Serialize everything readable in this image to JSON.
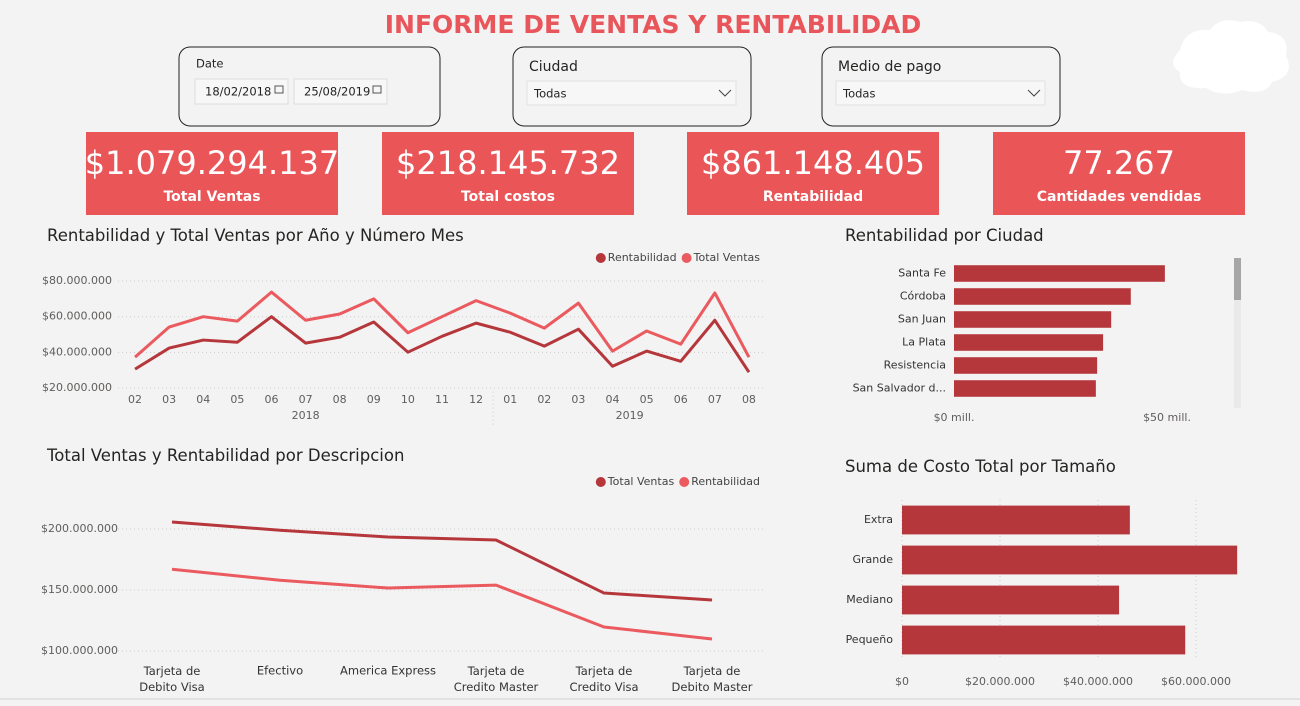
{
  "title": "INFORME DE VENTAS Y RENTABILIDAD",
  "filters": {
    "date": {
      "label": "Date",
      "start": "18/02/2018",
      "end": "25/08/2019"
    },
    "ciudad": {
      "label": "Ciudad",
      "value": "Todas"
    },
    "medio_pago": {
      "label": "Medio de pago",
      "value": "Todas"
    }
  },
  "kpis": [
    {
      "value": "$1.079.294.137",
      "label": "Total Ventas"
    },
    {
      "value": "$218.145.732",
      "label": "Total costos"
    },
    {
      "value": "$861.148.405",
      "label": "Rentabilidad"
    },
    {
      "value": "77.267",
      "label": "Cantidades vendidas"
    }
  ],
  "chart_data": [
    {
      "type": "line",
      "title": "Rentabilidad y Total Ventas por Año y Número Mes",
      "categories": [
        "02",
        "03",
        "04",
        "05",
        "06",
        "07",
        "08",
        "09",
        "10",
        "11",
        "12",
        "01",
        "02",
        "03",
        "04",
        "05",
        "06",
        "07",
        "08"
      ],
      "x_groups": [
        "2018",
        "2019"
      ],
      "series": [
        {
          "name": "Rentabilidad",
          "color": "#b5373b",
          "values": [
            30600000,
            42400000,
            46900000,
            45700000,
            60000000,
            45200000,
            48500000,
            57000000,
            40100000,
            49000000,
            56400000,
            51300000,
            43500000,
            53000000,
            32200000,
            40700000,
            35000000,
            58000000,
            28900000
          ]
        },
        {
          "name": "Total Ventas",
          "color": "#ea5a5e",
          "values": [
            37300000,
            54200000,
            60000000,
            57500000,
            73800000,
            58000000,
            61500000,
            70000000,
            51000000,
            60000000,
            69000000,
            62000000,
            53600000,
            67600000,
            40700000,
            52000000,
            44600000,
            73300000,
            37300000
          ]
        }
      ],
      "ylim": [
        18000000,
        84000000
      ],
      "yticks": [
        {
          "value": 20000000,
          "label": "$20.000.000"
        },
        {
          "value": 40000000,
          "label": "$40.000.000"
        },
        {
          "value": 60000000,
          "label": "$60.000.000"
        },
        {
          "value": 80000000,
          "label": "$80.000.000"
        }
      ],
      "grid": true,
      "legend": "top-right"
    },
    {
      "type": "line",
      "title": "Total Ventas y Rentabilidad por Descripcion",
      "categories": [
        "Tarjeta de Debito Visa",
        "Efectivo",
        "America Express",
        "Tarjeta de Credito Master",
        "Tarjeta de Credito Visa",
        "Tarjeta de Debito Master"
      ],
      "series": [
        {
          "name": "Total Ventas",
          "color": "#b5373b",
          "values": [
            205700000,
            199000000,
            193400000,
            191000000,
            147500000,
            141800000
          ]
        },
        {
          "name": "Rentabilidad",
          "color": "#ea5a5e",
          "values": [
            167000000,
            158000000,
            151600000,
            154000000,
            119700000,
            109800000
          ]
        }
      ],
      "ylim": [
        95000000,
        225000000
      ],
      "yticks": [
        {
          "value": 100000000,
          "label": "$100.000.000"
        },
        {
          "value": 150000000,
          "label": "$150.000.000"
        },
        {
          "value": 200000000,
          "label": "$200.000.000"
        }
      ],
      "grid": true,
      "legend": "top-right"
    },
    {
      "type": "hbar",
      "title": "Rentabilidad por Ciudad",
      "categories": [
        "Santa Fe",
        "Córdoba",
        "San Juan",
        "La Plata",
        "Resistencia",
        "San Salvador d..."
      ],
      "values": [
        49500000,
        41500000,
        36900000,
        35000000,
        33600000,
        33300000
      ],
      "color": "#b5373b",
      "xlim": [
        0,
        60000000
      ],
      "xticks": [
        {
          "value": 0,
          "label": "$0 mill."
        },
        {
          "value": 50000000,
          "label": "$50 mill."
        }
      ],
      "grid": false
    },
    {
      "type": "hbar",
      "title": "Suma de Costo Total por Tamaño",
      "categories": [
        "Extra",
        "Grande",
        "Mediano",
        "Pequeño"
      ],
      "values": [
        46500000,
        68400000,
        44300000,
        57800000
      ],
      "color": "#b5373b",
      "xlim": [
        0,
        70000000
      ],
      "xticks": [
        {
          "value": 0,
          "label": "$0"
        },
        {
          "value": 20000000,
          "label": "$20.000.000"
        },
        {
          "value": 40000000,
          "label": "$40.000.000"
        },
        {
          "value": 60000000,
          "label": "$60.000.000"
        }
      ],
      "grid": true
    }
  ]
}
